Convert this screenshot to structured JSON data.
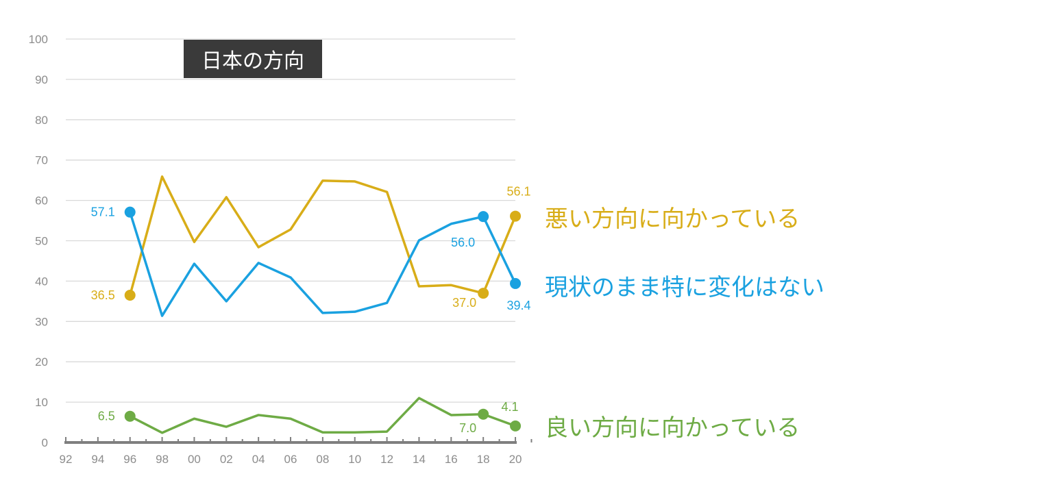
{
  "chart_data": {
    "type": "line",
    "title": "日本の方向",
    "xlabel": "",
    "ylabel": "",
    "x": [
      "92",
      "94",
      "96",
      "98",
      "00",
      "02",
      "04",
      "06",
      "08",
      "10",
      "12",
      "14",
      "16",
      "18",
      "20"
    ],
    "ylim": [
      0,
      100
    ],
    "yticks": [
      "0",
      "10",
      "20",
      "30",
      "40",
      "50",
      "60",
      "70",
      "80",
      "90",
      "100"
    ],
    "grid": true,
    "series": [
      {
        "name": "悪い方向に向かっている",
        "color": "#D8AD18",
        "values": [
          null,
          null,
          36.5,
          65.9,
          49.7,
          60.8,
          48.4,
          52.8,
          64.9,
          64.7,
          62.1,
          38.7,
          39.0,
          37.0,
          56.1
        ],
        "labels": {
          "2": "36.5",
          "13": "37.0",
          "14": "56.1"
        }
      },
      {
        "name": "現状のまま特に変化はない",
        "color": "#1AA1E0",
        "values": [
          null,
          null,
          57.1,
          31.4,
          44.3,
          35.0,
          44.5,
          40.9,
          32.1,
          32.4,
          34.6,
          50.1,
          54.2,
          56.0,
          39.4
        ],
        "labels": {
          "2": "57.1",
          "13": "56.0",
          "14": "39.4"
        }
      },
      {
        "name": "良い方向に向かっている",
        "color": "#6EAB45",
        "values": [
          null,
          null,
          6.5,
          2.4,
          5.9,
          3.9,
          6.8,
          5.9,
          2.5,
          2.5,
          2.7,
          11.0,
          6.8,
          7.0,
          4.1
        ],
        "labels": {
          "2": "6.5",
          "13": "7.0",
          "14": "4.1"
        }
      }
    ]
  }
}
